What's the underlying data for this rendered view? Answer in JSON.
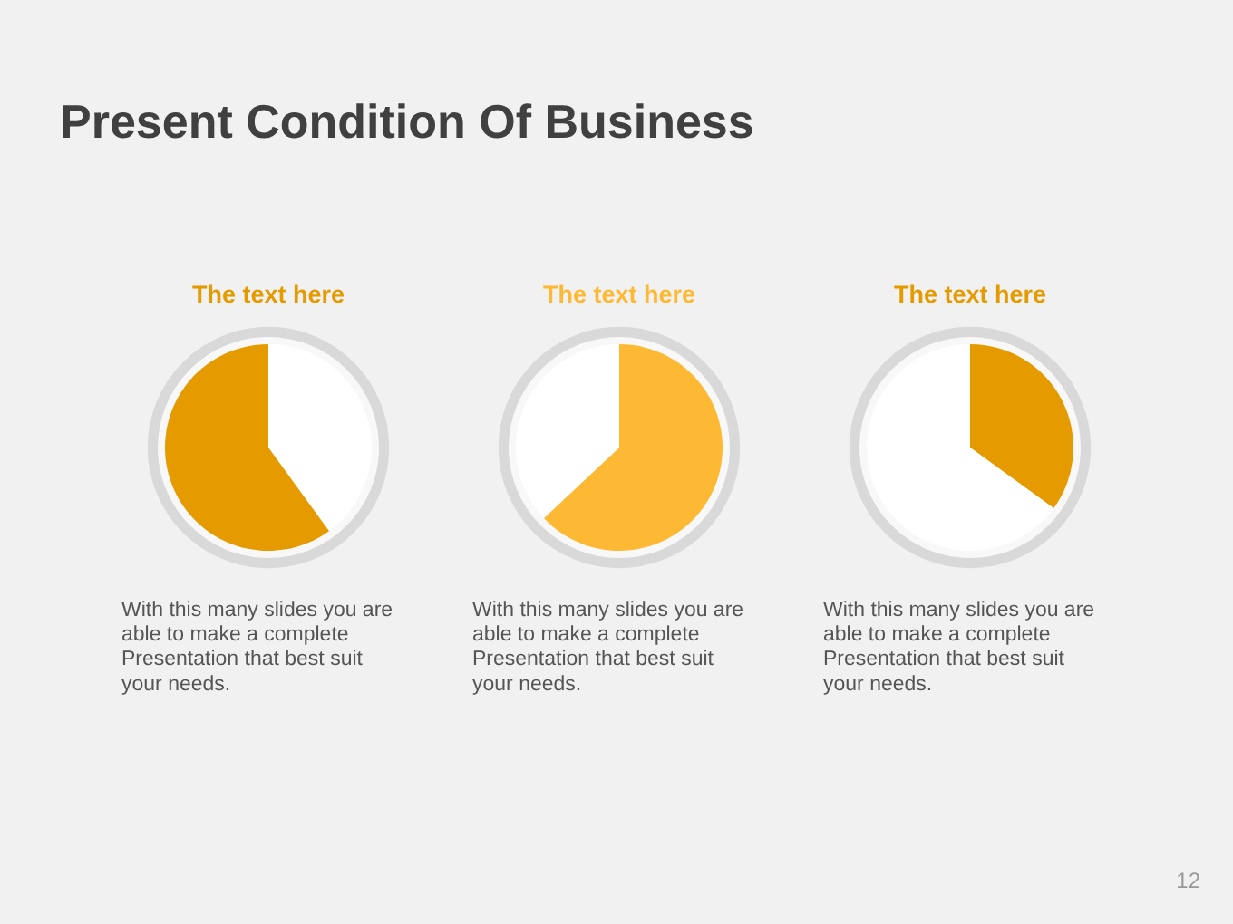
{
  "chart_data": [
    {
      "type": "other",
      "title": "Present Condition Of Business",
      "annotations": [
        "12"
      ]
    },
    {
      "type": "pie",
      "title": "The text here",
      "categories": [
        null,
        null
      ],
      "values": [
        40,
        60
      ],
      "colors": [
        "#ffffff",
        "#e59b00"
      ],
      "annotations": [
        "With this many slides you are able to make a complete Presentation that best suit your needs."
      ]
    },
    {
      "type": "pie",
      "title": "The text here",
      "categories": [
        null,
        null
      ],
      "values": [
        63,
        37
      ],
      "colors": [
        "#fdb933",
        "#ffffff"
      ],
      "annotations": [
        "With this many slides you are able to make a complete Presentation that best suit your needs."
      ]
    },
    {
      "type": "pie",
      "title": "The text here",
      "categories": [
        null,
        null
      ],
      "values": [
        35,
        65
      ],
      "colors": [
        "#e59b00",
        "#ffffff"
      ],
      "annotations": [
        "With this many slides you are able to make a complete Presentation that best suit your needs."
      ]
    }
  ]
}
